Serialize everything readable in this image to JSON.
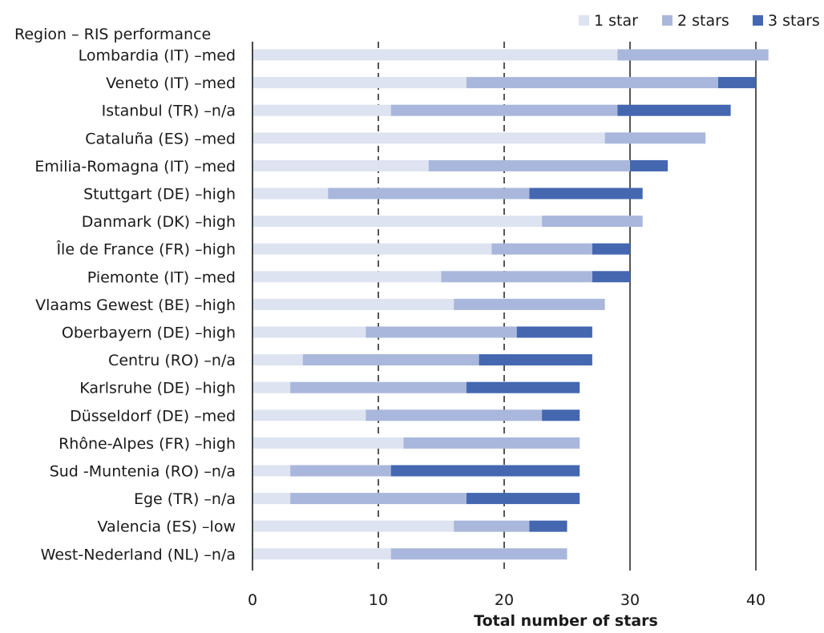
{
  "chart_data": {
    "type": "bar",
    "orientation": "horizontal",
    "stacked": true,
    "category_header": "Region – RIS performance",
    "xlabel": "Total number of stars",
    "xlim": [
      0,
      42
    ],
    "xticks": [
      0,
      10,
      20,
      30,
      40
    ],
    "legend_position": "top-right",
    "grid": "vertical lines at 10, 20 (dashed) and 30, 40 (solid)",
    "categories": [
      "Lombardia (IT) –med",
      "Veneto (IT) –med",
      "Istanbul (TR) –n/a",
      "Cataluña (ES) –med",
      "Emilia-Romagna (IT) –med",
      "Stuttgart (DE) –high",
      "Danmark (DK) –high",
      "Île de France (FR) –high",
      "Piemonte (IT) –med",
      "Vlaams Gewest (BE) –high",
      "Oberbayern (DE) –high",
      "Centru (RO) –n/a",
      "Karlsruhe (DE) –high",
      "Düsseldorf (DE) –med",
      "Rhône-Alpes (FR) –high",
      "Sud -Muntenia (RO) –n/a",
      "Ege (TR) –n/a",
      "Valencia (ES) –low",
      "West-Nederland (NL) –n/a"
    ],
    "series": [
      {
        "name": "1 star",
        "color": "#dde3f0",
        "values": [
          29,
          17,
          11,
          28,
          14,
          6,
          23,
          19,
          15,
          16,
          9,
          4,
          3,
          9,
          12,
          3,
          3,
          16,
          11
        ]
      },
      {
        "name": "2 stars",
        "color": "#a9b7dc",
        "values": [
          12,
          20,
          18,
          8,
          16,
          16,
          8,
          8,
          12,
          12,
          12,
          14,
          14,
          14,
          14,
          8,
          14,
          6,
          14
        ]
      },
      {
        "name": "3 stars",
        "color": "#4467b0",
        "values": [
          0,
          3,
          9,
          0,
          3,
          9,
          0,
          3,
          3,
          0,
          6,
          9,
          9,
          3,
          0,
          15,
          9,
          3,
          0
        ]
      }
    ]
  }
}
